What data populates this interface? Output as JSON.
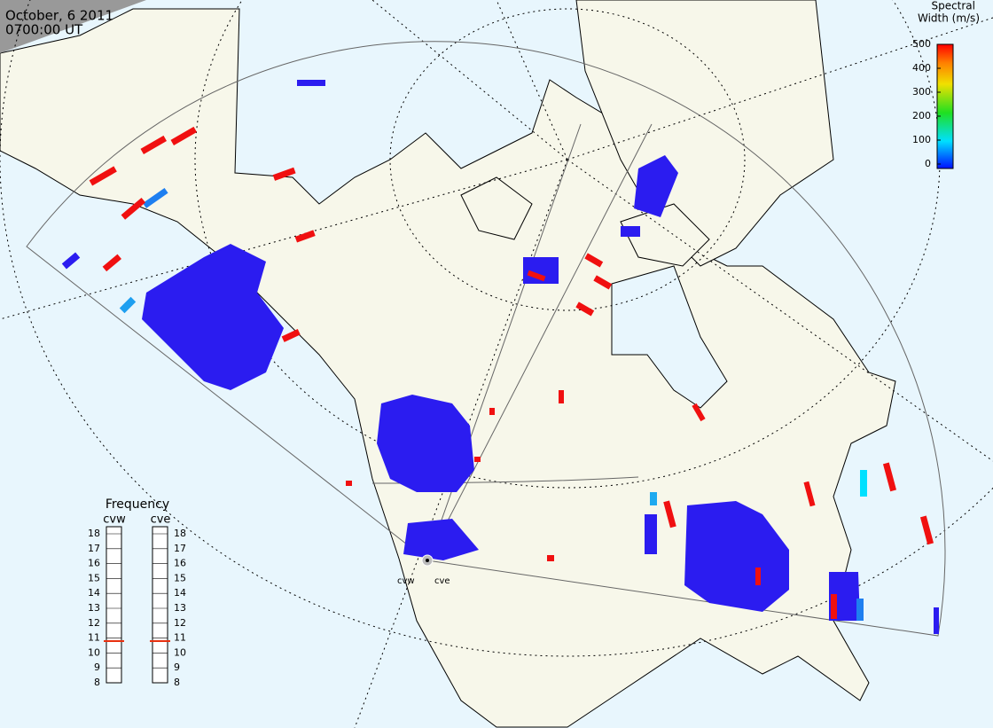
{
  "header": {
    "date": "October, 6 2011",
    "time": "0700:00 UT"
  },
  "colorbar": {
    "title": [
      "Spectral",
      "Width (m/s)"
    ],
    "lim": [
      0,
      500
    ],
    "ticks": [
      0,
      100,
      200,
      300,
      400,
      500
    ]
  },
  "frequency": {
    "title": "Frequency",
    "lim": [
      8,
      18
    ],
    "ticks": [
      8,
      9,
      10,
      11,
      12,
      13,
      14,
      15,
      16,
      17,
      18
    ],
    "radars": [
      {
        "name": "cvw",
        "value": 10.8
      },
      {
        "name": "cve",
        "value": 10.8
      }
    ]
  },
  "sites": [
    "cvw",
    "cve"
  ]
}
